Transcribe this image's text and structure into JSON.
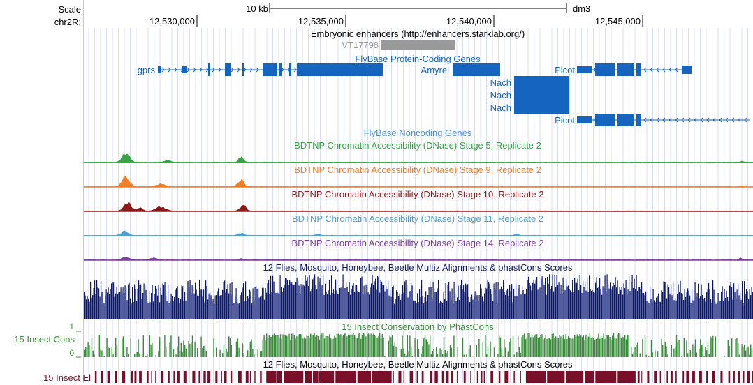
{
  "header": {
    "scale_label": "Scale",
    "chrom_label": "chr2R:",
    "scale_bar_label": "10 kb",
    "assembly": "dm3",
    "ticks": [
      "12,530,000",
      "12,535,000",
      "12,540,000",
      "12,545,000"
    ]
  },
  "tracks": {
    "enhancers": {
      "title": "Embryonic enhancers (http://enhancers.starklab.org/)",
      "item_label": "VT17798",
      "color": "#999999"
    },
    "genes": {
      "title": "FlyBase Protein-Coding Genes",
      "color": "#1565c0",
      "labels": [
        "gprs",
        "Amyrel",
        "Nach",
        "Nach",
        "Nach",
        "Picot",
        "Picot"
      ]
    },
    "noncoding": {
      "title": "FlyBase Noncoding Genes",
      "color": "#4a90d9"
    },
    "dnase": [
      {
        "title": "BDTNP Chromatin Accessibility (DNase) Stage 5, Replicate 2",
        "color": "#3aa346"
      },
      {
        "title": "BDTNP Chromatin Accessibility (DNase) Stage 9, Replicate 2",
        "color": "#f07f25"
      },
      {
        "title": "BDTNP Chromatin Accessibility (DNase) Stage 10, Replicate 2",
        "color": "#8b1a1a"
      },
      {
        "title": "BDTNP Chromatin Accessibility (DNase) Stage 11, Replicate 2",
        "color": "#4aa3cf"
      },
      {
        "title": "BDTNP Chromatin Accessibility (DNase) Stage 14, Replicate 2",
        "color": "#7a3e9d"
      }
    ],
    "multiz": {
      "title": "12 Flies, Mosquito, Honeybee, Beetle Multiz Alignments & phastCons Scores",
      "color": "#0d1a6b"
    },
    "conservation": {
      "title": "15 Insect Conservation by PhastCons",
      "side_label": "15 Insect Cons",
      "axis_top": "1",
      "axis_bottom": "0",
      "color": "#3d8b3d"
    },
    "elements": {
      "title": "12 Flies, Mosquito, Honeybee, Beetle Multiz Alignments & phastCons Scores",
      "side_label": "15 Insect El",
      "color": "#7a0f2a"
    }
  }
}
